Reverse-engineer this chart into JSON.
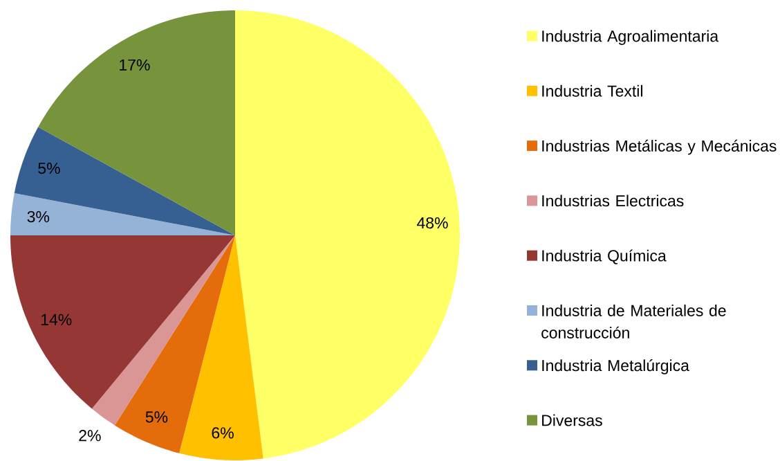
{
  "chart_data": {
    "type": "pie",
    "categories": [
      "Industria Agroalimentaria",
      "Industria Textil",
      "Industrias Metálicas y Mecánicas",
      "Industrias Electricas",
      "Industria Química",
      "Industria de Materiales de construcción",
      "Industria Metalúrgica",
      "Diversas"
    ],
    "values": [
      48,
      6,
      5,
      2,
      14,
      3,
      5,
      17
    ],
    "colors": [
      "#ffff66",
      "#ffc000",
      "#e46c0a",
      "#d99694",
      "#953735",
      "#95b3d7",
      "#376092",
      "#77933c"
    ],
    "value_labels": [
      "48%",
      "6%",
      "5%",
      "2%",
      "14%",
      "3%",
      "5%",
      "17%"
    ],
    "legend": "right"
  }
}
